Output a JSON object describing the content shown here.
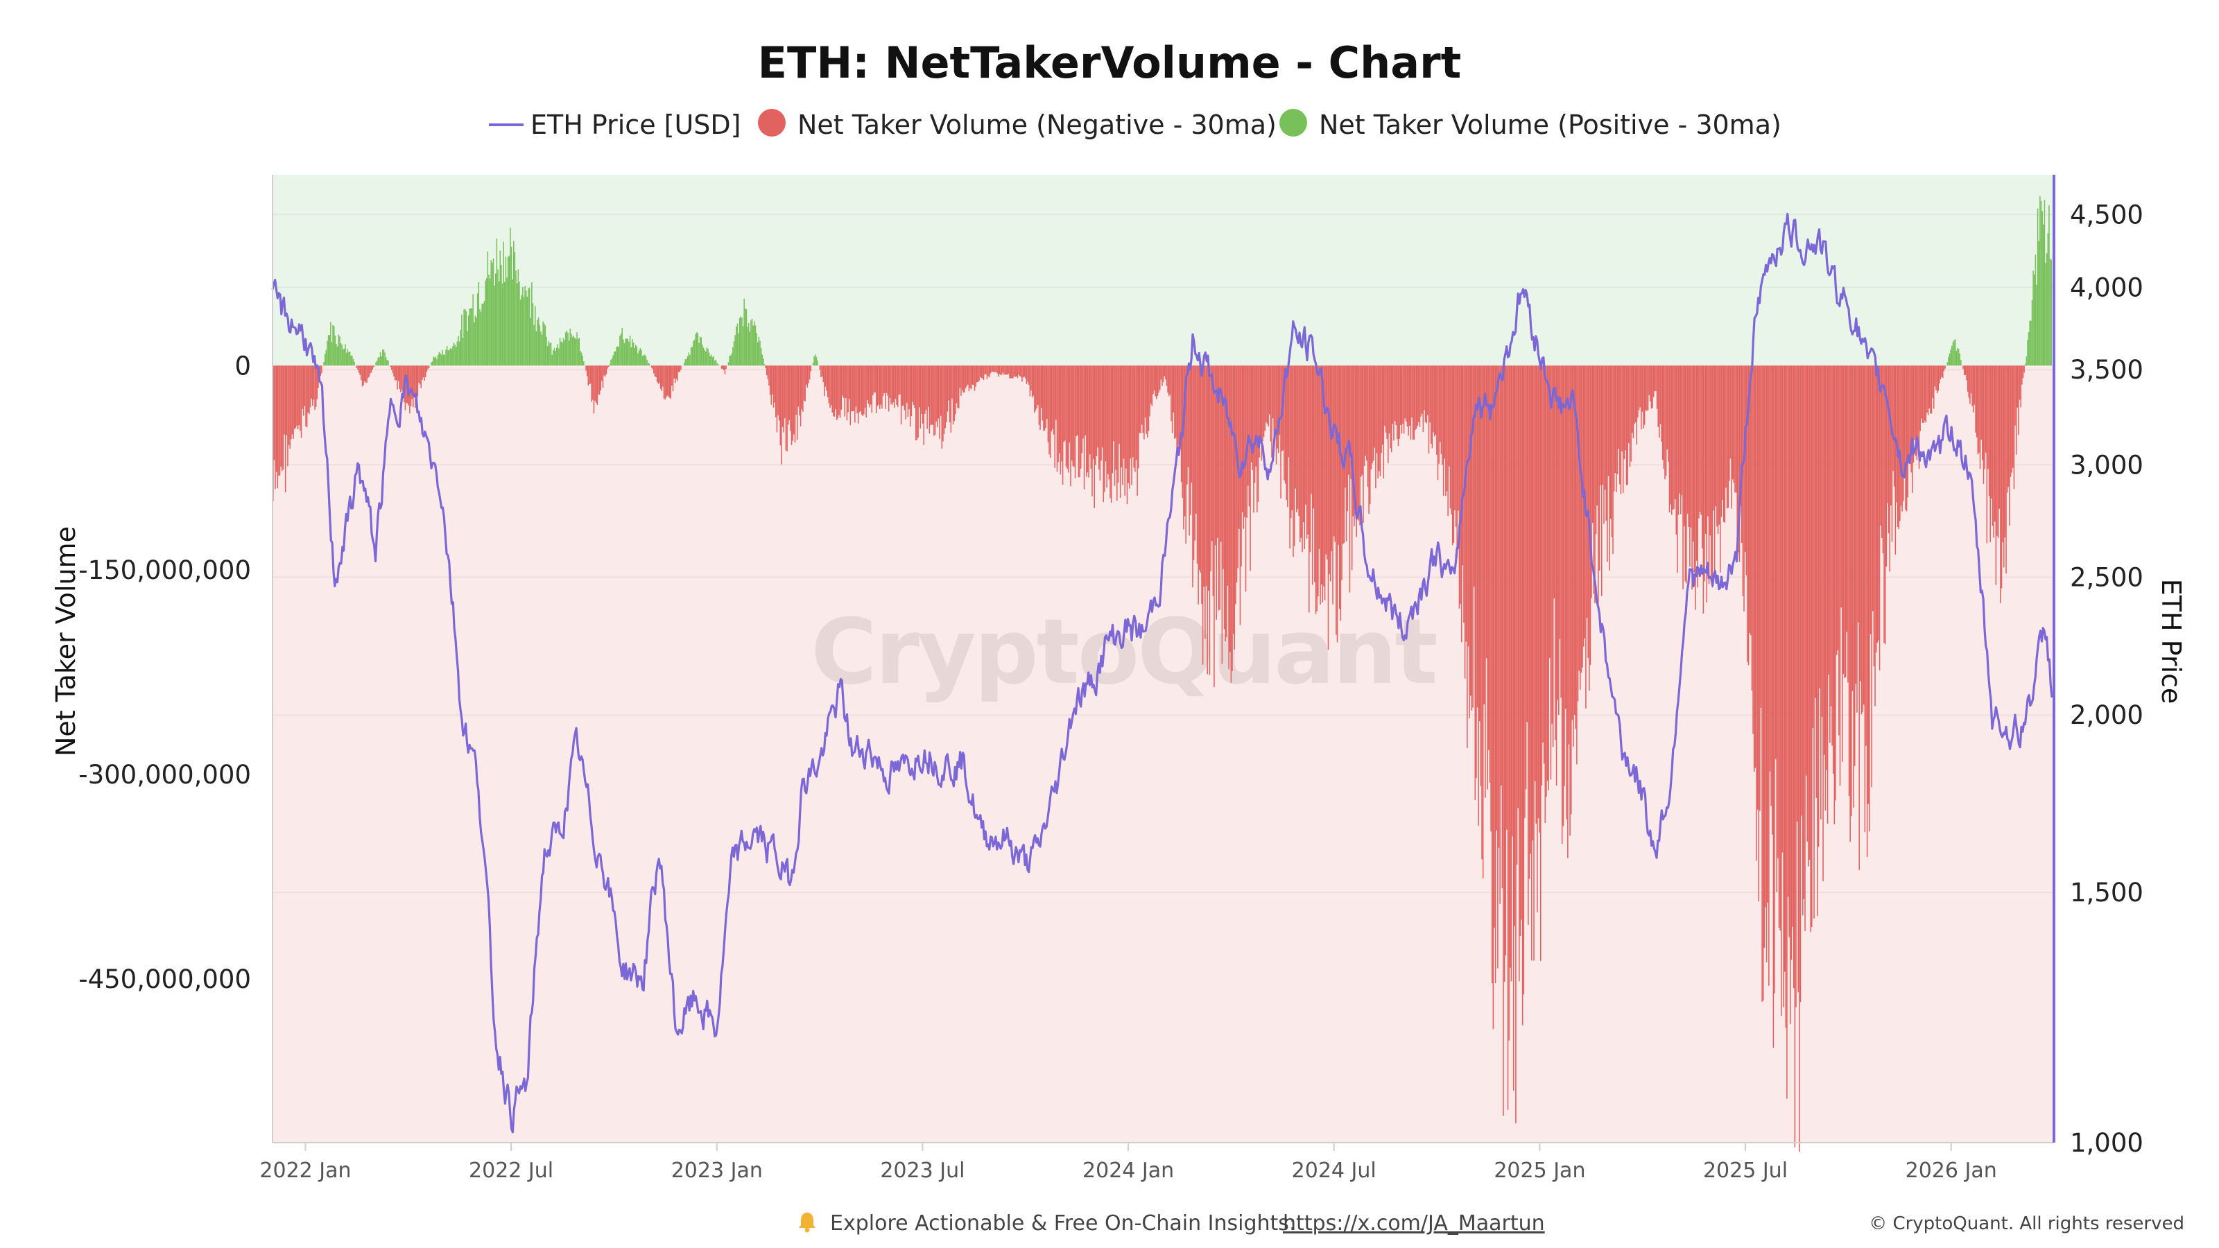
{
  "chart_data": {
    "type": "bar",
    "title": "ETH: NetTakerVolume - Chart",
    "legend": [
      {
        "label": "ETH Price [USD]",
        "marker": "line",
        "color": "#7b68d6"
      },
      {
        "label": "Net Taker Volume (Negative - 30ma)",
        "marker": "dot",
        "color": "#e2625f"
      },
      {
        "label": "Net Taker Volume (Positive - 30ma)",
        "marker": "dot",
        "color": "#78c05a"
      }
    ],
    "legend_position": "top-center",
    "ylabel_left": "Net Taker Volume",
    "ylabel_right": "ETH Price",
    "y_left_range": [
      -570000000,
      140000000
    ],
    "y_left_ticks": [
      0,
      -150000000,
      -300000000,
      -450000000
    ],
    "y_left_tick_labels": [
      "0",
      "-150,000,000",
      "-300,000,000",
      "-450,000,000"
    ],
    "y_right_scale": "log",
    "y_right_range": [
      1000,
      4800
    ],
    "y_right_ticks": [
      1000,
      1500,
      2000,
      2500,
      3000,
      3500,
      4000,
      4500
    ],
    "y_right_tick_labels": [
      "1,000",
      "1,500",
      "2,000",
      "2,500",
      "3,000",
      "3,500",
      "4,000",
      "4,500"
    ],
    "x_range": [
      2021.92,
      2026.25
    ],
    "x_ticks": [
      2022.0,
      2022.5,
      2023.0,
      2023.5,
      2024.0,
      2024.5,
      2025.0,
      2025.5,
      2026.0
    ],
    "x_tick_labels": [
      "2022 Jan",
      "2022 Jul",
      "2023 Jan",
      "2023 Jul",
      "2024 Jan",
      "2024 Jul",
      "2025 Jan",
      "2025 Jul",
      "2026 Jan"
    ],
    "positive_color": "#78c05a",
    "negative_color": "#e2625f",
    "price_color": "#7b68d6",
    "volume_keypoints": [
      [
        2021.92,
        -100000000
      ],
      [
        2021.96,
        -60000000
      ],
      [
        2022.0,
        -40000000
      ],
      [
        2022.03,
        -20000000
      ],
      [
        2022.06,
        28000000
      ],
      [
        2022.11,
        10000000
      ],
      [
        2022.14,
        -15000000
      ],
      [
        2022.19,
        12000000
      ],
      [
        2022.25,
        -35000000
      ],
      [
        2022.31,
        5000000
      ],
      [
        2022.36,
        15000000
      ],
      [
        2022.43,
        60000000
      ],
      [
        2022.48,
        85000000
      ],
      [
        2022.55,
        50000000
      ],
      [
        2022.6,
        10000000
      ],
      [
        2022.66,
        28000000
      ],
      [
        2022.7,
        -30000000
      ],
      [
        2022.77,
        25000000
      ],
      [
        2022.83,
        5000000
      ],
      [
        2022.88,
        -25000000
      ],
      [
        2022.95,
        22000000
      ],
      [
        2023.02,
        -5000000
      ],
      [
        2023.07,
        45000000
      ],
      [
        2023.11,
        10000000
      ],
      [
        2023.16,
        -60000000
      ],
      [
        2023.2,
        -40000000
      ],
      [
        2023.24,
        10000000
      ],
      [
        2023.27,
        -30000000
      ],
      [
        2023.33,
        -35000000
      ],
      [
        2023.4,
        -25000000
      ],
      [
        2023.48,
        -40000000
      ],
      [
        2023.55,
        -50000000
      ],
      [
        2023.6,
        -20000000
      ],
      [
        2023.67,
        -5000000
      ],
      [
        2023.75,
        -10000000
      ],
      [
        2023.81,
        -60000000
      ],
      [
        2023.88,
        -70000000
      ],
      [
        2023.95,
        -85000000
      ],
      [
        2024.02,
        -75000000
      ],
      [
        2024.06,
        -25000000
      ],
      [
        2024.09,
        -10000000
      ],
      [
        2024.12,
        -60000000
      ],
      [
        2024.18,
        -180000000
      ],
      [
        2024.24,
        -200000000
      ],
      [
        2024.29,
        -130000000
      ],
      [
        2024.34,
        -40000000
      ],
      [
        2024.4,
        -110000000
      ],
      [
        2024.45,
        -140000000
      ],
      [
        2024.5,
        -165000000
      ],
      [
        2024.56,
        -100000000
      ],
      [
        2024.61,
        -70000000
      ],
      [
        2024.65,
        -50000000
      ],
      [
        2024.72,
        -40000000
      ],
      [
        2024.77,
        -80000000
      ],
      [
        2024.83,
        -220000000
      ],
      [
        2024.88,
        -370000000
      ],
      [
        2024.92,
        -440000000
      ],
      [
        2024.97,
        -400000000
      ],
      [
        2025.03,
        -260000000
      ],
      [
        2025.08,
        -310000000
      ],
      [
        2025.13,
        -160000000
      ],
      [
        2025.18,
        -100000000
      ],
      [
        2025.23,
        -55000000
      ],
      [
        2025.28,
        -20000000
      ],
      [
        2025.33,
        -125000000
      ],
      [
        2025.38,
        -150000000
      ],
      [
        2025.43,
        -130000000
      ],
      [
        2025.47,
        -80000000
      ],
      [
        2025.51,
        -200000000
      ],
      [
        2025.55,
        -380000000
      ],
      [
        2025.6,
        -470000000
      ],
      [
        2025.65,
        -395000000
      ],
      [
        2025.7,
        -290000000
      ],
      [
        2025.74,
        -260000000
      ],
      [
        2025.79,
        -310000000
      ],
      [
        2025.83,
        -170000000
      ],
      [
        2025.88,
        -90000000
      ],
      [
        2025.92,
        -60000000
      ],
      [
        2025.96,
        -25000000
      ],
      [
        2026.01,
        20000000
      ],
      [
        2026.04,
        -15000000
      ],
      [
        2026.08,
        -80000000
      ],
      [
        2026.12,
        -170000000
      ],
      [
        2026.16,
        -50000000
      ],
      [
        2026.19,
        25000000
      ],
      [
        2026.22,
        120000000
      ],
      [
        2026.245,
        90000000
      ]
    ],
    "price_keypoints": [
      [
        2021.92,
        3900
      ],
      [
        2021.96,
        3800
      ],
      [
        2022.0,
        3700
      ],
      [
        2022.04,
        3300
      ],
      [
        2022.07,
        2500
      ],
      [
        2022.1,
        2700
      ],
      [
        2022.13,
        3000
      ],
      [
        2022.17,
        2600
      ],
      [
        2022.21,
        3300
      ],
      [
        2022.25,
        3400
      ],
      [
        2022.28,
        3200
      ],
      [
        2022.33,
        2900
      ],
      [
        2022.38,
        2000
      ],
      [
        2022.42,
        1800
      ],
      [
        2022.46,
        1200
      ],
      [
        2022.5,
        1050
      ],
      [
        2022.54,
        1100
      ],
      [
        2022.58,
        1600
      ],
      [
        2022.62,
        1650
      ],
      [
        2022.66,
        1900
      ],
      [
        2022.7,
        1650
      ],
      [
        2022.73,
        1550
      ],
      [
        2022.77,
        1330
      ],
      [
        2022.82,
        1300
      ],
      [
        2022.86,
        1600
      ],
      [
        2022.9,
        1200
      ],
      [
        2022.95,
        1260
      ],
      [
        2023.0,
        1200
      ],
      [
        2023.04,
        1580
      ],
      [
        2023.09,
        1650
      ],
      [
        2023.14,
        1600
      ],
      [
        2023.18,
        1520
      ],
      [
        2023.21,
        1800
      ],
      [
        2023.25,
        1850
      ],
      [
        2023.3,
        2080
      ],
      [
        2023.33,
        1880
      ],
      [
        2023.37,
        1900
      ],
      [
        2023.41,
        1820
      ],
      [
        2023.45,
        1820
      ],
      [
        2023.5,
        1900
      ],
      [
        2023.55,
        1850
      ],
      [
        2023.6,
        1850
      ],
      [
        2023.64,
        1650
      ],
      [
        2023.7,
        1640
      ],
      [
        2023.75,
        1570
      ],
      [
        2023.78,
        1600
      ],
      [
        2023.83,
        1800
      ],
      [
        2023.87,
        2050
      ],
      [
        2023.91,
        2100
      ],
      [
        2023.95,
        2250
      ],
      [
        2024.0,
        2300
      ],
      [
        2024.04,
        2280
      ],
      [
        2024.08,
        2500
      ],
      [
        2024.12,
        3000
      ],
      [
        2024.16,
        3700
      ],
      [
        2024.19,
        3500
      ],
      [
        2024.23,
        3300
      ],
      [
        2024.27,
        3050
      ],
      [
        2024.31,
        3150
      ],
      [
        2024.35,
        3000
      ],
      [
        2024.4,
        3700
      ],
      [
        2024.45,
        3600
      ],
      [
        2024.5,
        3150
      ],
      [
        2024.54,
        3000
      ],
      [
        2024.58,
        2550
      ],
      [
        2024.63,
        2400
      ],
      [
        2024.67,
        2300
      ],
      [
        2024.71,
        2450
      ],
      [
        2024.75,
        2600
      ],
      [
        2024.79,
        2450
      ],
      [
        2024.84,
        3300
      ],
      [
        2024.88,
        3300
      ],
      [
        2024.92,
        3600
      ],
      [
        2024.96,
        4000
      ],
      [
        2025.0,
        3600
      ],
      [
        2025.04,
        3300
      ],
      [
        2025.08,
        3300
      ],
      [
        2025.12,
        2700
      ],
      [
        2025.16,
        2200
      ],
      [
        2025.2,
        1900
      ],
      [
        2025.24,
        1800
      ],
      [
        2025.28,
        1600
      ],
      [
        2025.32,
        1800
      ],
      [
        2025.36,
        2500
      ],
      [
        2025.4,
        2500
      ],
      [
        2025.44,
        2450
      ],
      [
        2025.48,
        2600
      ],
      [
        2025.52,
        3700
      ],
      [
        2025.56,
        4200
      ],
      [
        2025.6,
        4400
      ],
      [
        2025.64,
        4300
      ],
      [
        2025.68,
        4300
      ],
      [
        2025.72,
        4000
      ],
      [
        2025.76,
        3850
      ],
      [
        2025.8,
        3500
      ],
      [
        2025.84,
        3400
      ],
      [
        2025.88,
        3000
      ],
      [
        2025.92,
        3100
      ],
      [
        2025.96,
        3000
      ],
      [
        2026.0,
        3200
      ],
      [
        2026.04,
        3000
      ],
      [
        2026.07,
        2500
      ],
      [
        2026.1,
        2000
      ],
      [
        2026.14,
        1950
      ],
      [
        2026.17,
        1950
      ],
      [
        2026.2,
        2100
      ],
      [
        2026.23,
        2300
      ],
      [
        2026.245,
        2100
      ]
    ]
  },
  "watermark": "CryptoQuant",
  "footer": {
    "bell_icon": "bell-icon",
    "text": "Explore Actionable & Free On-Chain Insights:",
    "link": "https://x.com/JA_Maartun",
    "copyright": "© CryptoQuant. All rights reserved"
  }
}
